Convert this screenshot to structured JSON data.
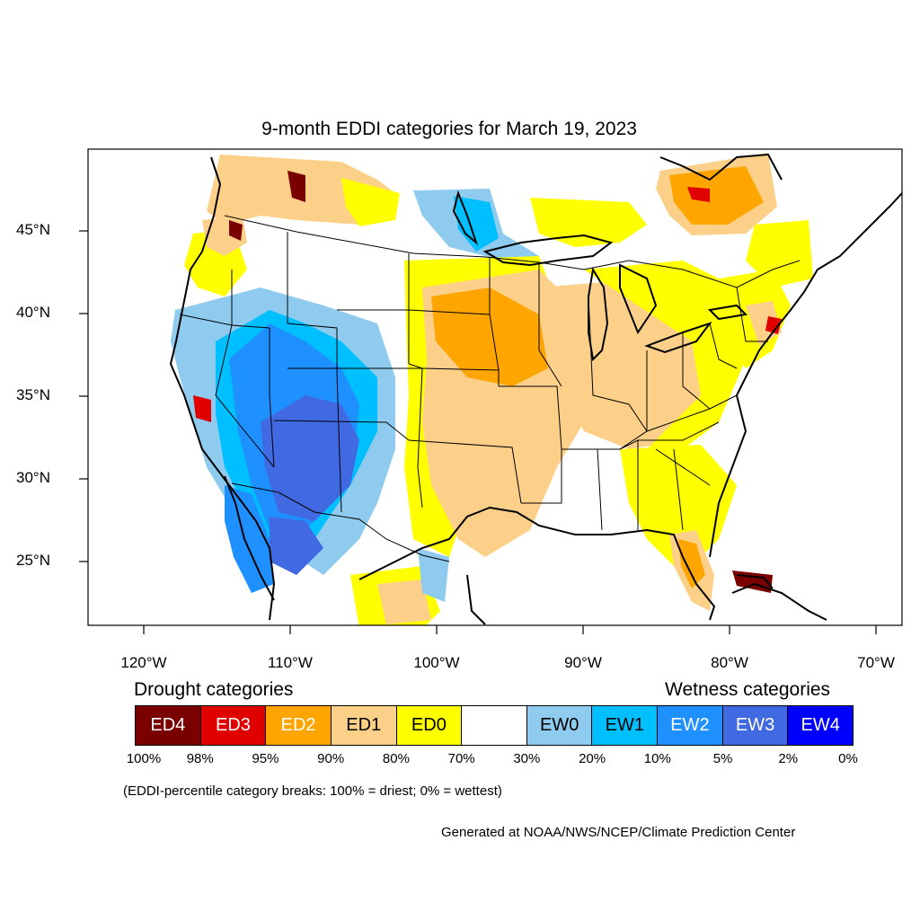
{
  "title": "9-month EDDI categories for March 19, 2023",
  "lat_labels": [
    "45°N",
    "40°N",
    "35°N",
    "30°N",
    "25°N"
  ],
  "lon_labels": [
    "120°W",
    "110°W",
    "100°W",
    "90°W",
    "80°W",
    "70°W"
  ],
  "drought_heading": "Drought categories",
  "wetness_heading": "Wetness categories",
  "legend": [
    {
      "label": "ED4",
      "color": "#7a0000",
      "text_color": "#ffffff"
    },
    {
      "label": "ED3",
      "color": "#e00000",
      "text_color": "#ffffff"
    },
    {
      "label": "ED2",
      "color": "#ffa500",
      "text_color": "#ffffff"
    },
    {
      "label": "ED1",
      "color": "#fdd08a",
      "text_color": "#000000"
    },
    {
      "label": "ED0",
      "color": "#ffff00",
      "text_color": "#000000"
    },
    {
      "label": "",
      "color": "#ffffff",
      "text_color": "#000000"
    },
    {
      "label": "EW0",
      "color": "#8ecbee",
      "text_color": "#000000"
    },
    {
      "label": "EW1",
      "color": "#00bfff",
      "text_color": "#000000"
    },
    {
      "label": "EW2",
      "color": "#1e90ff",
      "text_color": "#ffffff"
    },
    {
      "label": "EW3",
      "color": "#4169e1",
      "text_color": "#ffffff"
    },
    {
      "label": "EW4",
      "color": "#0000ff",
      "text_color": "#ffffff"
    }
  ],
  "percent_breaks": [
    "100%",
    "98%",
    "95%",
    "90%",
    "80%",
    "70%",
    "30%",
    "20%",
    "10%",
    "5%",
    "2%",
    "0%"
  ],
  "note": "(EDDI-percentile category breaks: 100% = driest; 0% = wettest)",
  "credit": "Generated at NOAA/NWS/NCEP/Climate Prediction Center"
}
